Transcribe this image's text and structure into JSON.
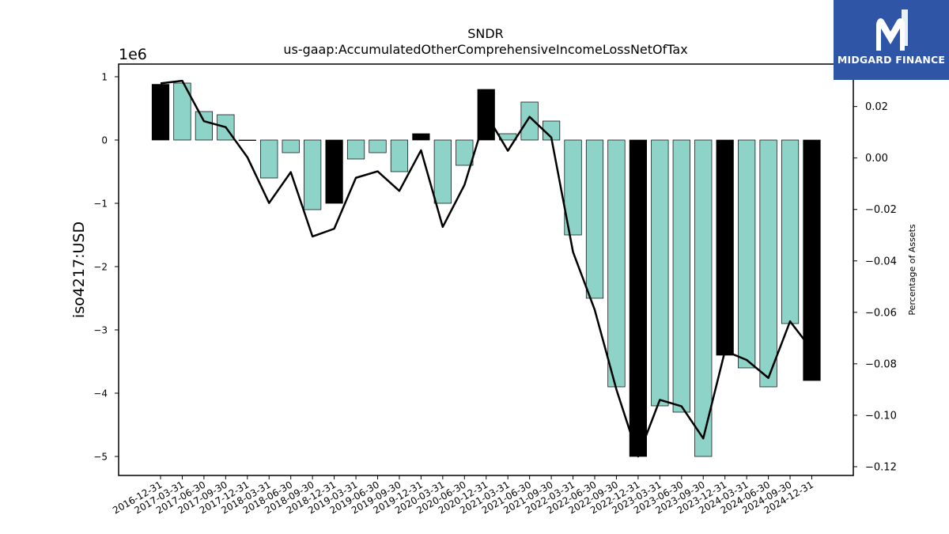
{
  "chart_data": {
    "type": "bar",
    "title": "SNDR",
    "subtitle": "us-gaap:AccumulatedOtherComprehensiveIncomeLossNetOfTax",
    "ylabel": "iso4217:USD",
    "y2label": "Percentage of Assets",
    "yscale_label": "1e6",
    "ylim": [
      -5.3,
      1.2
    ],
    "y2lim": [
      -0.1234,
      0.0365
    ],
    "yticks": [
      -5,
      -4,
      -3,
      -2,
      -1,
      0,
      1
    ],
    "y2ticks": [
      -0.12,
      -0.1,
      -0.08,
      -0.06,
      -0.04,
      -0.02,
      0.0,
      0.02
    ],
    "categories": [
      "2016-12-31",
      "2017-03-31",
      "2017-06-30",
      "2017-09-30",
      "2017-12-31",
      "2018-03-31",
      "2018-06-30",
      "2018-09-30",
      "2018-12-31",
      "2019-03-31",
      "2019-06-30",
      "2019-09-30",
      "2019-12-31",
      "2020-03-31",
      "2020-06-30",
      "2020-12-31",
      "2021-03-31",
      "2021-06-30",
      "2021-09-30",
      "2022-03-31",
      "2022-06-30",
      "2022-09-30",
      "2022-12-31",
      "2023-03-31",
      "2023-06-30",
      "2023-09-30",
      "2023-12-31",
      "2024-03-31",
      "2024-06-30",
      "2024-09-30",
      "2024-12-31"
    ],
    "series": [
      {
        "type": "bar",
        "axis": "left",
        "values": [
          0.88,
          0.9,
          0.45,
          0.4,
          0.0,
          -0.6,
          -0.2,
          -1.1,
          -1.0,
          -0.3,
          -0.2,
          -0.5,
          0.1,
          -1.0,
          -0.4,
          0.8,
          0.1,
          0.6,
          0.3,
          -1.5,
          -2.5,
          -3.9,
          -5.0,
          -4.2,
          -4.3,
          -5.0,
          -3.4,
          -3.6,
          -3.9,
          -2.9,
          -3.8
        ],
        "highlight": [
          true,
          false,
          false,
          false,
          false,
          false,
          false,
          false,
          true,
          false,
          false,
          false,
          true,
          false,
          false,
          true,
          false,
          false,
          false,
          false,
          false,
          false,
          true,
          false,
          false,
          false,
          true,
          false,
          false,
          false,
          true
        ]
      },
      {
        "type": "line",
        "axis": "right",
        "values": [
          0.029,
          0.03,
          0.0143,
          0.012,
          0.0003,
          -0.0175,
          -0.0055,
          -0.0305,
          -0.0275,
          -0.0077,
          -0.0052,
          -0.0128,
          0.003,
          -0.0268,
          -0.0105,
          0.017,
          0.0028,
          0.016,
          0.008,
          -0.0365,
          -0.059,
          -0.09,
          -0.116,
          -0.094,
          -0.0965,
          -0.109,
          -0.075,
          -0.0785,
          -0.0855,
          -0.0635,
          -0.0745
        ]
      }
    ],
    "colors": {
      "bar": "#8dd3c7",
      "highlight": "#000000",
      "line": "#000000",
      "edge": "#000000"
    },
    "grid": false
  },
  "logo": {
    "text": "MIDGARD FINANCE",
    "background": "#2f56a6"
  }
}
